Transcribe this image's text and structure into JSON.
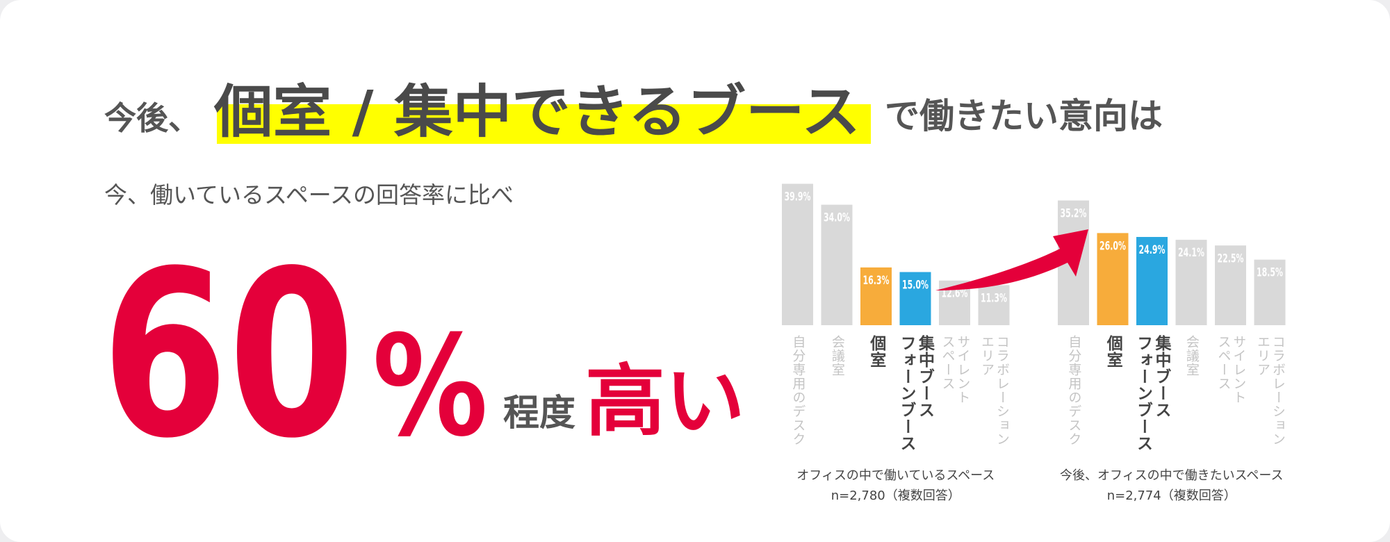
{
  "headline": {
    "lead": "今後、",
    "highlight": "個室 / 集中できるブース",
    "tail": "で働きたい意向は",
    "subtitle": "今、働いているスペースの回答率に比べ",
    "big_number": "60",
    "big_unit": "%",
    "degree": "程度",
    "conclusion": "高い"
  },
  "chart_data": [
    {
      "type": "bar",
      "title": "オフィスの中で働いているスペース",
      "note": "n=2,780（複数回答）",
      "categories": [
        "自分専用のデスク",
        "会議室",
        "個室",
        "集中ブース\nフォーンブース",
        "サイレント\nスペース",
        "コラボレーション\nエリア"
      ],
      "values": [
        39.9,
        34.0,
        16.3,
        15.0,
        12.6,
        11.3
      ],
      "value_labels": [
        "39.9%",
        "34.0%",
        "16.3%",
        "15.0%",
        "12.6%",
        "11.3%"
      ],
      "colors": [
        "#d9d9d9",
        "#d9d9d9",
        "#f7ac3b",
        "#2aa7e0",
        "#d9d9d9",
        "#d9d9d9"
      ],
      "ylim": [
        0,
        40
      ]
    },
    {
      "type": "bar",
      "title": "今後、オフィスの中で働きたいスペース",
      "note": "n=2,774（複数回答）",
      "categories": [
        "自分専用のデスク",
        "個室",
        "集中ブース\nフォーンブース",
        "会議室",
        "サイレント\nスペース",
        "コラボレーション\nエリア"
      ],
      "values": [
        35.2,
        26.0,
        24.9,
        24.1,
        22.5,
        18.5
      ],
      "value_labels": [
        "35.2%",
        "26.0%",
        "24.9%",
        "24.1%",
        "22.5%",
        "18.5%"
      ],
      "colors": [
        "#d9d9d9",
        "#f7ac3b",
        "#2aa7e0",
        "#d9d9d9",
        "#d9d9d9",
        "#d9d9d9"
      ],
      "ylim": [
        0,
        40
      ]
    }
  ]
}
